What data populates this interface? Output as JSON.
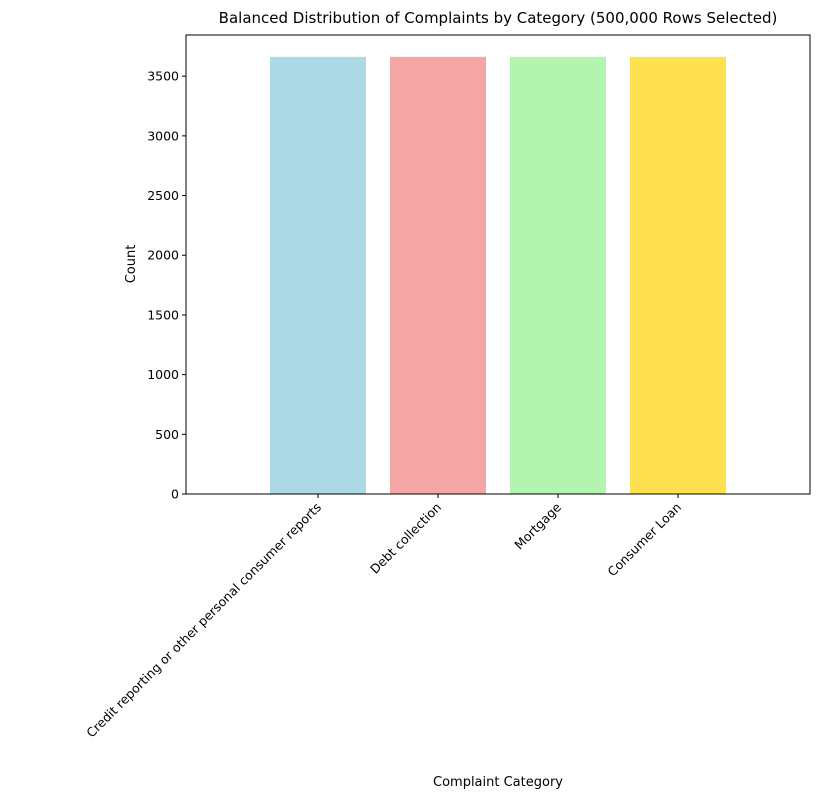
{
  "chart_data": {
    "type": "bar",
    "title": "Balanced Distribution of Complaints by Category (500,000 Rows Selected)",
    "xlabel": "Complaint Category",
    "ylabel": "Count",
    "categories": [
      "Credit reporting or other personal consumer reports",
      "Debt collection",
      "Mortgage",
      "Consumer Loan"
    ],
    "values": [
      3662,
      3662,
      3662,
      3662
    ],
    "colors": [
      "#add8e6",
      "#f4a6a6",
      "#b2f4b0",
      "#ffe04f"
    ],
    "ylim": [
      0,
      3845
    ],
    "yticks": [
      0,
      500,
      1000,
      1500,
      2000,
      2500,
      3000,
      3500
    ],
    "grid": false,
    "legend": "none"
  }
}
